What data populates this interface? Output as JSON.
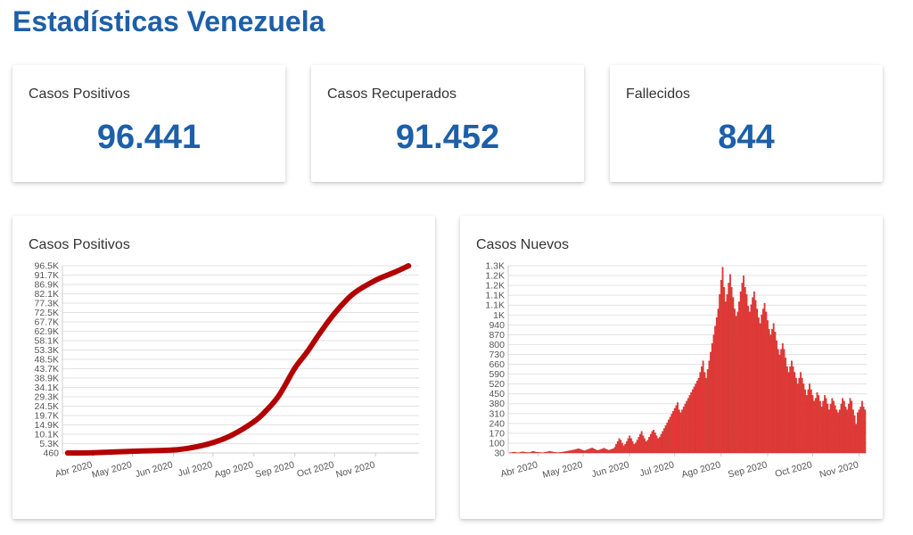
{
  "title": "Estadísticas Venezuela",
  "stats": [
    {
      "label": "Casos Positivos",
      "value": "96.441"
    },
    {
      "label": "Casos Recuperados",
      "value": "91.452"
    },
    {
      "label": "Fallecidos",
      "value": "844"
    }
  ],
  "colors": {
    "accent": "#1d5fa8",
    "line": "#b30000",
    "bar": "#e53935"
  },
  "chart_data": [
    {
      "type": "line",
      "title": "Casos Positivos",
      "x_ticks": [
        "Abr 2020",
        "May 2020",
        "Jun 2020",
        "Jul 2020",
        "Ago 2020",
        "Sep 2020",
        "Oct 2020",
        "Nov 2020"
      ],
      "y_ticks": [
        "460",
        "5.3K",
        "10.1K",
        "14.9K",
        "19.7K",
        "24.5K",
        "29.3K",
        "34.1K",
        "38.9K",
        "43.7K",
        "48.5K",
        "53.3K",
        "58.1K",
        "62.9K",
        "67.7K",
        "72.5K",
        "77.3K",
        "82.1K",
        "86.9K",
        "91.7K",
        "96.5K"
      ],
      "ylim": [
        460,
        96500
      ],
      "grid": true,
      "series": [
        {
          "x": [
            "2020-03-13",
            "2020-04-01",
            "2020-05-01",
            "2020-06-01",
            "2020-06-15",
            "2020-07-01",
            "2020-07-15",
            "2020-08-01",
            "2020-08-10",
            "2020-08-20",
            "2020-09-01",
            "2020-09-10",
            "2020-09-20",
            "2020-10-01",
            "2020-10-15",
            "2020-11-01",
            "2020-11-15",
            "2020-11-26"
          ],
          "values": [
            33,
            600,
            1300,
            2000,
            3200,
            5800,
            9500,
            16500,
            22000,
            30000,
            44000,
            52000,
            62000,
            72000,
            82000,
            89000,
            93000,
            96441
          ]
        }
      ]
    },
    {
      "type": "bar",
      "title": "Casos Nuevos",
      "x_ticks": [
        "Abr 2020",
        "May 2020",
        "Jun 2020",
        "Jul 2020",
        "Ago 2020",
        "Sep 2020",
        "Oct 2020",
        "Nov 2020"
      ],
      "y_ticks": [
        "30",
        "100",
        "170",
        "240",
        "310",
        "380",
        "450",
        "520",
        "590",
        "660",
        "730",
        "800",
        "870",
        "940",
        "1K",
        "1.1K",
        "1.1K",
        "1.2K",
        "1.2K",
        "1.3K"
      ],
      "ylim": [
        0,
        1300
      ],
      "grid": true,
      "start_date": "2020-03-13",
      "values": [
        2,
        3,
        5,
        6,
        4,
        3,
        2,
        5,
        7,
        8,
        6,
        5,
        4,
        3,
        6,
        10,
        12,
        8,
        6,
        5,
        4,
        3,
        2,
        4,
        6,
        8,
        10,
        12,
        9,
        7,
        5,
        4,
        3,
        4,
        5,
        6,
        8,
        10,
        12,
        14,
        16,
        18,
        20,
        22,
        25,
        28,
        30,
        26,
        22,
        18,
        16,
        20,
        24,
        28,
        32,
        35,
        30,
        25,
        20,
        18,
        22,
        26,
        30,
        34,
        28,
        24,
        20,
        22,
        26,
        30,
        40,
        60,
        80,
        100,
        90,
        70,
        50,
        60,
        80,
        100,
        120,
        100,
        80,
        60,
        70,
        90,
        110,
        130,
        150,
        120,
        100,
        80,
        90,
        110,
        130,
        150,
        160,
        140,
        120,
        100,
        110,
        130,
        150,
        170,
        190,
        210,
        230,
        250,
        270,
        290,
        310,
        330,
        350,
        300,
        280,
        300,
        320,
        340,
        360,
        380,
        400,
        420,
        440,
        460,
        480,
        500,
        520,
        560,
        600,
        640,
        560,
        520,
        580,
        640,
        700,
        760,
        820,
        880,
        940,
        1000,
        1100,
        1200,
        1290,
        1150,
        1050,
        1100,
        1180,
        1240,
        1150,
        1080,
        1000,
        950,
        980,
        1050,
        1120,
        1180,
        1230,
        1150,
        1100,
        1020,
        980,
        1030,
        1080,
        1120,
        1060,
        1000,
        940,
        900,
        960,
        1000,
        1040,
        980,
        920,
        860,
        820,
        860,
        900,
        840,
        780,
        720,
        680,
        720,
        760,
        720,
        660,
        600,
        560,
        600,
        640,
        600,
        560,
        520,
        480,
        520,
        560,
        520,
        480,
        440,
        400,
        440,
        480,
        440,
        400,
        360,
        380,
        420,
        400,
        360,
        320,
        360,
        400,
        380,
        340,
        300,
        340,
        380,
        360,
        330,
        300,
        280,
        300,
        340,
        380,
        360,
        320,
        300,
        340,
        380,
        360,
        300,
        260,
        200,
        280,
        300,
        320,
        360,
        320,
        300
      ]
    }
  ]
}
